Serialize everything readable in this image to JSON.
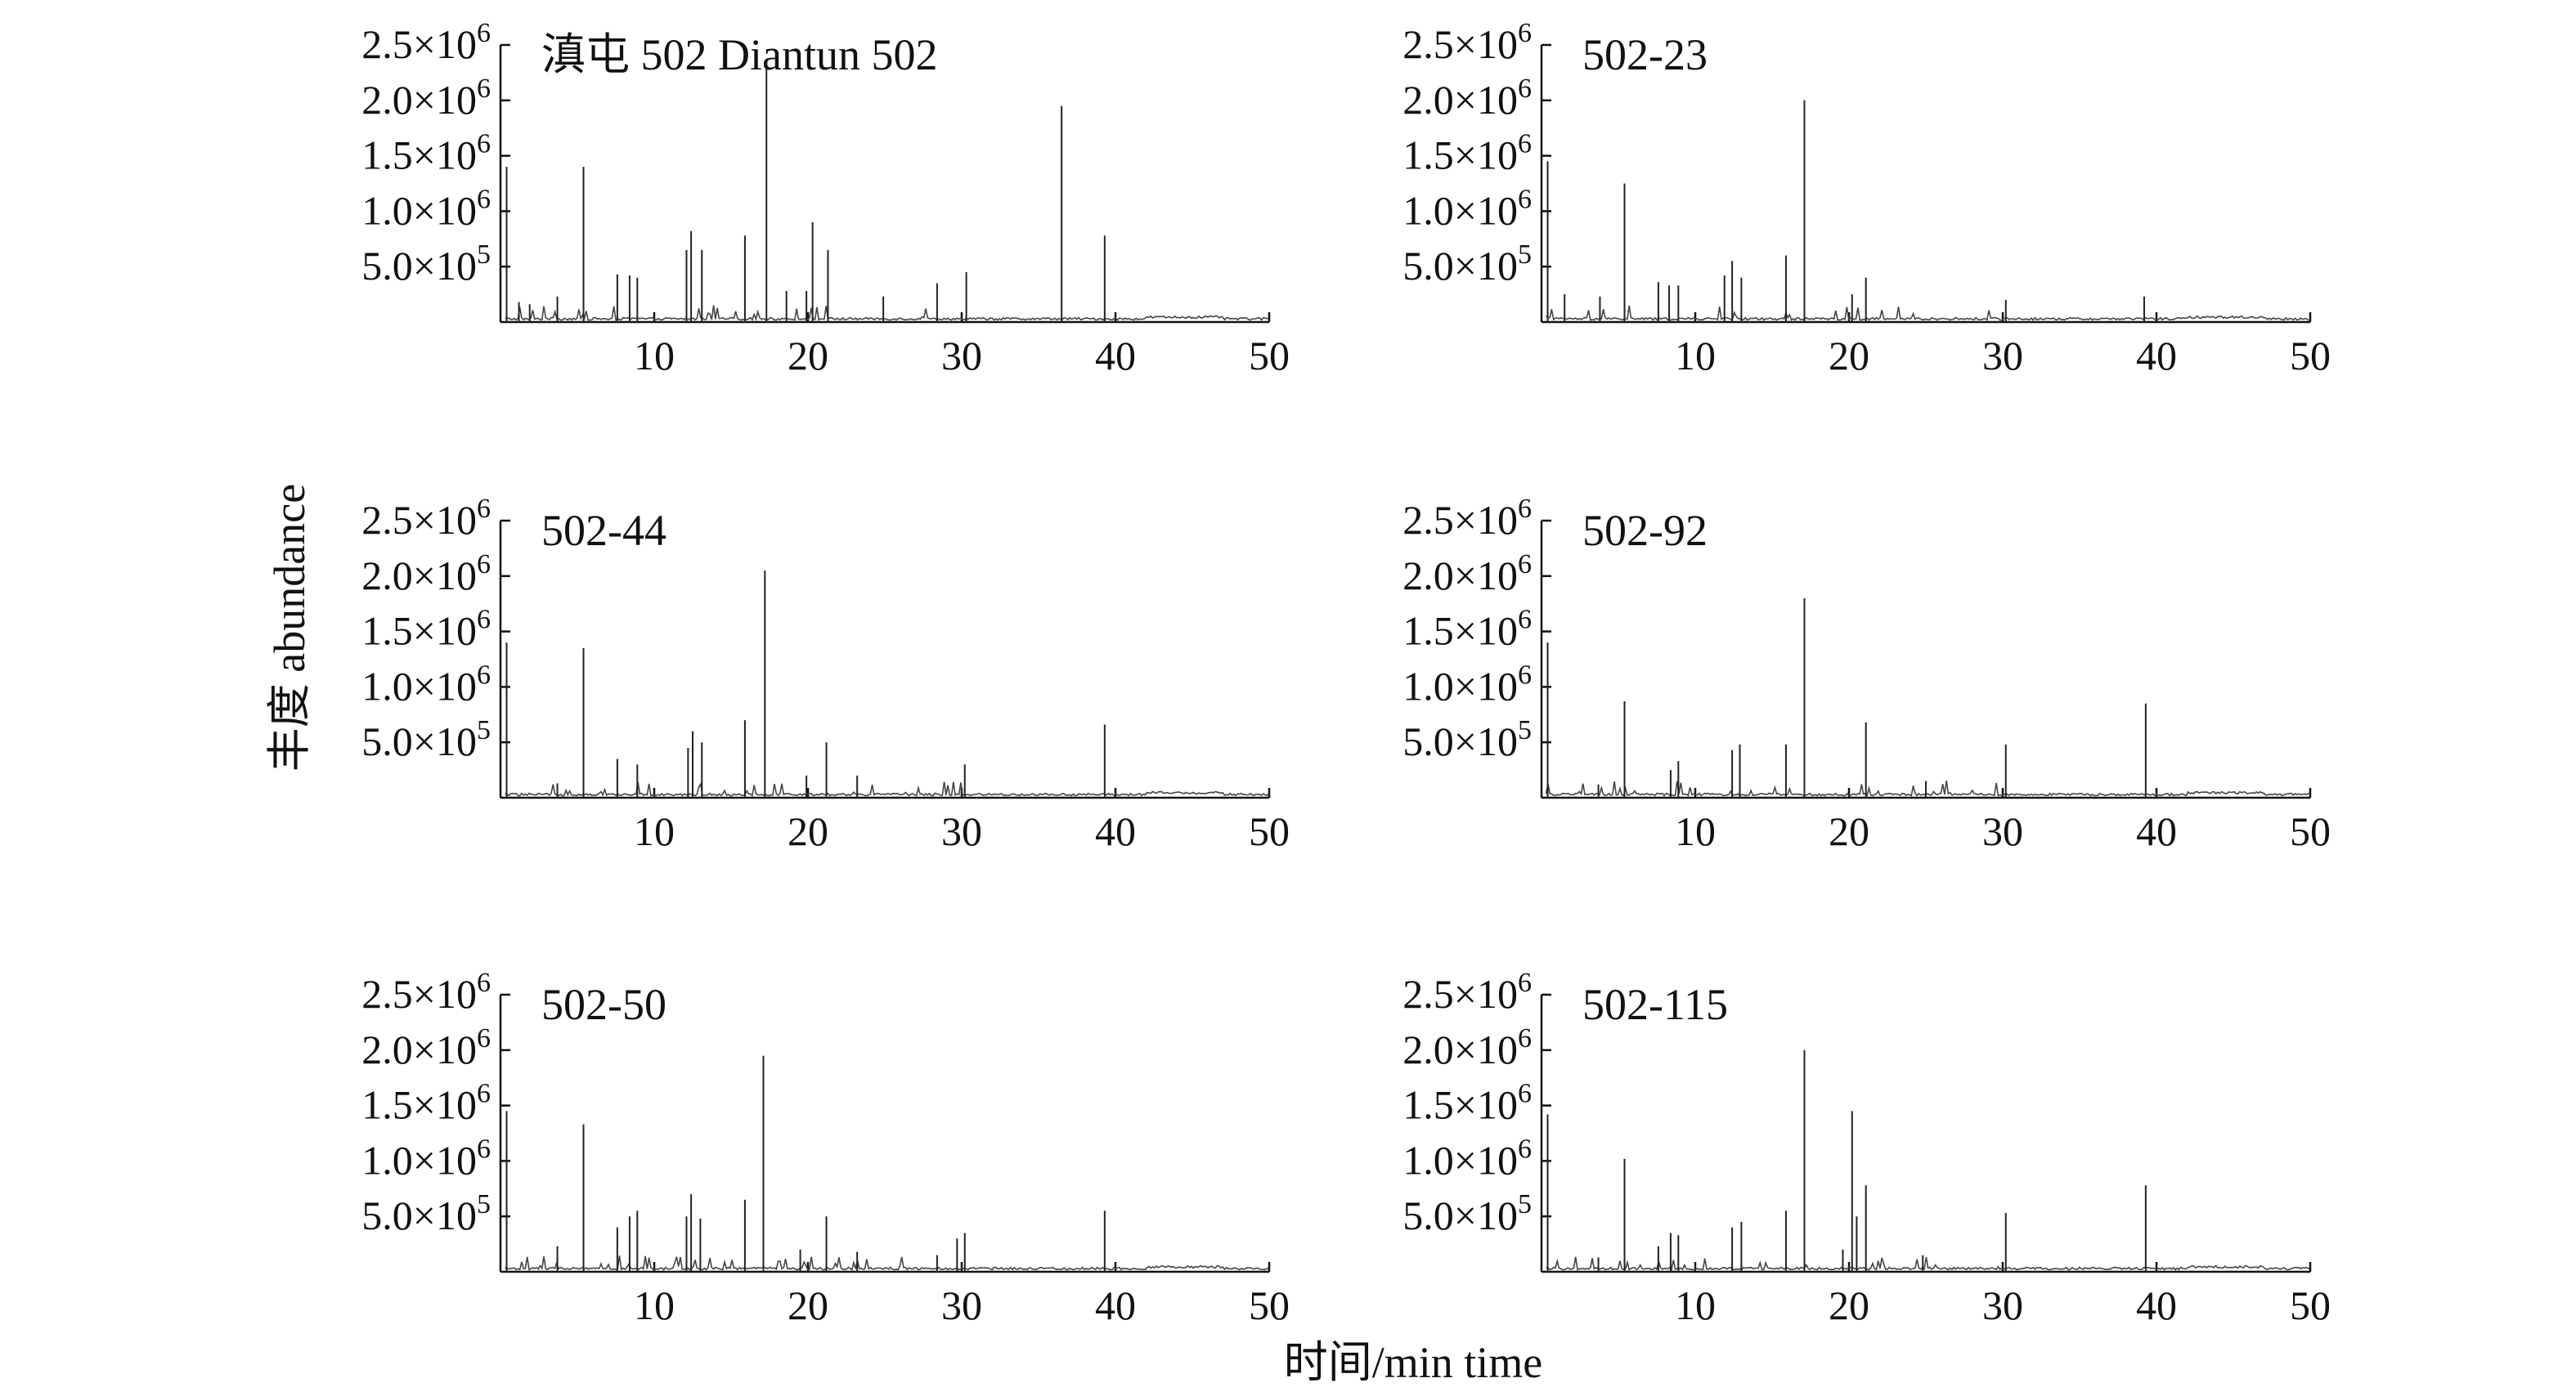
{
  "figure": {
    "ylabel": "丰度  abundance",
    "xlabel": "时间/min time"
  },
  "chart_data": [
    {
      "type": "line",
      "title": "滇屯 502 Diantun 502",
      "xlim": [
        0,
        50
      ],
      "ylim": [
        0,
        2500000
      ],
      "xticks": [
        10,
        20,
        30,
        40,
        50
      ],
      "xtick_labels": [
        "10",
        "20",
        "30",
        "40",
        "50"
      ],
      "yticks": [
        500000,
        1000000,
        1500000,
        2000000,
        2500000
      ],
      "ytick_labels": [
        {
          "mant": "5.0×10",
          "exp": "5"
        },
        {
          "mant": "1.0×10",
          "exp": "6"
        },
        {
          "mant": "1.5×10",
          "exp": "6"
        },
        {
          "mant": "2.0×10",
          "exp": "6"
        },
        {
          "mant": "2.5×10",
          "exp": "6"
        }
      ],
      "grid": false,
      "peaks": [
        [
          0.4,
          1400000
        ],
        [
          1.2,
          180000
        ],
        [
          1.9,
          160000
        ],
        [
          3.7,
          230000
        ],
        [
          5.4,
          1400000
        ],
        [
          7.6,
          430000
        ],
        [
          8.4,
          420000
        ],
        [
          8.9,
          400000
        ],
        [
          12.1,
          650000
        ],
        [
          12.4,
          820000
        ],
        [
          13.1,
          650000
        ],
        [
          15.9,
          780000
        ],
        [
          17.3,
          2350000
        ],
        [
          18.6,
          280000
        ],
        [
          19.9,
          280000
        ],
        [
          20.3,
          900000
        ],
        [
          21.3,
          650000
        ],
        [
          24.9,
          230000
        ],
        [
          28.4,
          350000
        ],
        [
          30.3,
          450000
        ],
        [
          36.5,
          1950000
        ],
        [
          39.3,
          780000
        ]
      ]
    },
    {
      "type": "line",
      "title": "502-23",
      "xlim": [
        0,
        50
      ],
      "ylim": [
        0,
        2500000
      ],
      "xticks": [
        10,
        20,
        30,
        40,
        50
      ],
      "xtick_labels": [
        "10",
        "20",
        "30",
        "40",
        "50"
      ],
      "yticks": [
        500000,
        1000000,
        1500000,
        2000000,
        2500000
      ],
      "ytick_labels": [
        {
          "mant": "5.0×10",
          "exp": "5"
        },
        {
          "mant": "1.0×10",
          "exp": "6"
        },
        {
          "mant": "1.5×10",
          "exp": "6"
        },
        {
          "mant": "2.0×10",
          "exp": "6"
        },
        {
          "mant": "2.5×10",
          "exp": "6"
        }
      ],
      "grid": false,
      "peaks": [
        [
          0.4,
          1450000
        ],
        [
          1.5,
          250000
        ],
        [
          3.8,
          230000
        ],
        [
          5.4,
          1250000
        ],
        [
          7.6,
          360000
        ],
        [
          8.3,
          330000
        ],
        [
          8.9,
          330000
        ],
        [
          11.9,
          420000
        ],
        [
          12.4,
          550000
        ],
        [
          13.0,
          400000
        ],
        [
          15.9,
          600000
        ],
        [
          17.1,
          2000000
        ],
        [
          20.2,
          250000
        ],
        [
          21.1,
          400000
        ],
        [
          30.2,
          200000
        ],
        [
          39.2,
          230000
        ]
      ]
    },
    {
      "type": "line",
      "title": "502-44",
      "xlim": [
        0,
        50
      ],
      "ylim": [
        0,
        2500000
      ],
      "xticks": [
        10,
        20,
        30,
        40,
        50
      ],
      "xtick_labels": [
        "10",
        "20",
        "30",
        "40",
        "50"
      ],
      "yticks": [
        500000,
        1000000,
        1500000,
        2000000,
        2500000
      ],
      "ytick_labels": [
        {
          "mant": "5.0×10",
          "exp": "5"
        },
        {
          "mant": "1.0×10",
          "exp": "6"
        },
        {
          "mant": "1.5×10",
          "exp": "6"
        },
        {
          "mant": "2.0×10",
          "exp": "6"
        },
        {
          "mant": "2.5×10",
          "exp": "6"
        }
      ],
      "grid": false,
      "peaks": [
        [
          0.4,
          1400000
        ],
        [
          3.7,
          130000
        ],
        [
          5.4,
          1350000
        ],
        [
          7.6,
          350000
        ],
        [
          8.9,
          300000
        ],
        [
          12.2,
          450000
        ],
        [
          12.5,
          600000
        ],
        [
          13.1,
          500000
        ],
        [
          15.9,
          700000
        ],
        [
          17.2,
          2050000
        ],
        [
          19.9,
          200000
        ],
        [
          21.2,
          500000
        ],
        [
          23.2,
          200000
        ],
        [
          30.2,
          300000
        ],
        [
          39.3,
          660000
        ]
      ]
    },
    {
      "type": "line",
      "title": "502-92",
      "xlim": [
        0,
        50
      ],
      "ylim": [
        0,
        2500000
      ],
      "xticks": [
        10,
        20,
        30,
        40,
        50
      ],
      "xtick_labels": [
        "10",
        "20",
        "30",
        "40",
        "50"
      ],
      "yticks": [
        500000,
        1000000,
        1500000,
        2000000,
        2500000
      ],
      "ytick_labels": [
        {
          "mant": "5.0×10",
          "exp": "5"
        },
        {
          "mant": "1.0×10",
          "exp": "6"
        },
        {
          "mant": "1.5×10",
          "exp": "6"
        },
        {
          "mant": "2.0×10",
          "exp": "6"
        },
        {
          "mant": "2.5×10",
          "exp": "6"
        }
      ],
      "grid": false,
      "peaks": [
        [
          0.4,
          1400000
        ],
        [
          3.7,
          120000
        ],
        [
          5.4,
          870000
        ],
        [
          8.4,
          250000
        ],
        [
          8.9,
          330000
        ],
        [
          12.4,
          430000
        ],
        [
          12.9,
          480000
        ],
        [
          15.9,
          480000
        ],
        [
          17.1,
          1800000
        ],
        [
          21.1,
          680000
        ],
        [
          25.0,
          150000
        ],
        [
          30.2,
          480000
        ],
        [
          39.3,
          850000
        ]
      ]
    },
    {
      "type": "line",
      "title": "502-50",
      "xlim": [
        0,
        50
      ],
      "ylim": [
        0,
        2500000
      ],
      "xticks": [
        10,
        20,
        30,
        40,
        50
      ],
      "xtick_labels": [
        "10",
        "20",
        "30",
        "40",
        "50"
      ],
      "yticks": [
        500000,
        1000000,
        1500000,
        2000000,
        2500000
      ],
      "ytick_labels": [
        {
          "mant": "5.0×10",
          "exp": "5"
        },
        {
          "mant": "1.0×10",
          "exp": "6"
        },
        {
          "mant": "1.5×10",
          "exp": "6"
        },
        {
          "mant": "2.0×10",
          "exp": "6"
        },
        {
          "mant": "2.5×10",
          "exp": "6"
        }
      ],
      "grid": false,
      "peaks": [
        [
          0.4,
          1450000
        ],
        [
          3.7,
          230000
        ],
        [
          5.4,
          1330000
        ],
        [
          7.6,
          400000
        ],
        [
          8.4,
          500000
        ],
        [
          8.9,
          550000
        ],
        [
          12.1,
          500000
        ],
        [
          12.4,
          700000
        ],
        [
          13.0,
          480000
        ],
        [
          15.9,
          650000
        ],
        [
          17.1,
          1950000
        ],
        [
          19.5,
          200000
        ],
        [
          21.2,
          500000
        ],
        [
          23.2,
          180000
        ],
        [
          28.4,
          150000
        ],
        [
          29.7,
          300000
        ],
        [
          30.2,
          350000
        ],
        [
          39.3,
          550000
        ]
      ]
    },
    {
      "type": "line",
      "title": "502-115",
      "xlim": [
        0,
        50
      ],
      "ylim": [
        0,
        2500000
      ],
      "xticks": [
        10,
        20,
        30,
        40,
        50
      ],
      "xtick_labels": [
        "10",
        "20",
        "30",
        "40",
        "50"
      ],
      "yticks": [
        500000,
        1000000,
        1500000,
        2000000,
        2500000
      ],
      "ytick_labels": [
        {
          "mant": "5.0×10",
          "exp": "5"
        },
        {
          "mant": "1.0×10",
          "exp": "6"
        },
        {
          "mant": "1.5×10",
          "exp": "6"
        },
        {
          "mant": "2.0×10",
          "exp": "6"
        },
        {
          "mant": "2.5×10",
          "exp": "6"
        }
      ],
      "grid": false,
      "peaks": [
        [
          0.4,
          1420000
        ],
        [
          3.7,
          130000
        ],
        [
          5.4,
          1020000
        ],
        [
          7.6,
          230000
        ],
        [
          8.4,
          350000
        ],
        [
          8.9,
          330000
        ],
        [
          12.4,
          400000
        ],
        [
          13.0,
          450000
        ],
        [
          15.9,
          550000
        ],
        [
          17.1,
          2000000
        ],
        [
          19.6,
          200000
        ],
        [
          20.2,
          1450000
        ],
        [
          20.5,
          500000
        ],
        [
          21.1,
          780000
        ],
        [
          24.8,
          150000
        ],
        [
          30.2,
          530000
        ],
        [
          39.3,
          780000
        ]
      ]
    }
  ]
}
